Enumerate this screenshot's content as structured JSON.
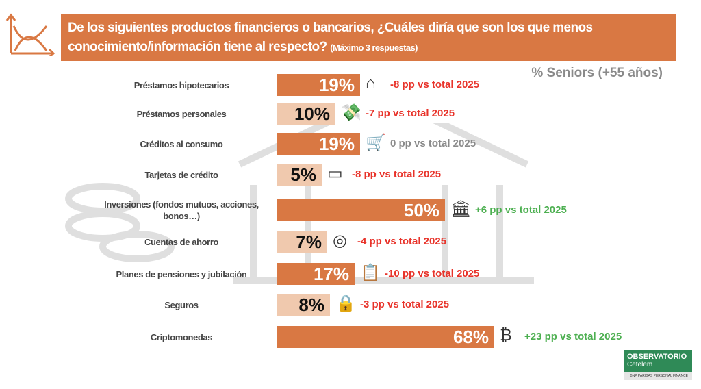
{
  "header": {
    "title": "De los siguientes productos financieros o bancarios, ¿Cuáles diría que son los que menos conocimiento/información tiene al respecto?",
    "note": "(Máximo 3 respuestas)"
  },
  "brand": {
    "name": "OBSERVATORIO",
    "sub": "Cetelem",
    "parent": "BNP PARIBAS PERSONAL FINANCE"
  },
  "chart_data": {
    "type": "bar",
    "orientation": "horizontal",
    "title": "% Seniors (+55 años)",
    "categories": [
      "Préstamos hipotecarios",
      "Préstamos personales",
      "Créditos al consumo",
      "Tarjetas de crédito",
      "Inversiones (fondos mutuos, acciones, bonos…)",
      "Cuentas de ahorro",
      "Planes de pensiones y jubilación",
      "Seguros",
      "Criptomonedas"
    ],
    "values": [
      19,
      10,
      19,
      5,
      50,
      7,
      17,
      8,
      68
    ],
    "value_labels": [
      "19%",
      "10%",
      "19%",
      "5%",
      "50%",
      "7%",
      "17%",
      "8%",
      "68%"
    ],
    "deltas": [
      "-8 pp vs total 2025",
      "-7 pp vs total 2025",
      "0 pp vs total 2025",
      "-8 pp vs total 2025",
      "+6 pp vs total 2025",
      "-4 pp vs total 2025",
      "-10 pp vs total 2025",
      "-3 pp vs total 2025",
      "+23 pp vs total 2025"
    ],
    "delta_colors": [
      "#E8332A",
      "#E8332A",
      "#8a8a8a",
      "#E8332A",
      "#4CAF50",
      "#E8332A",
      "#E8332A",
      "#E8332A",
      "#4CAF50"
    ],
    "icons": [
      "house-percent-icon",
      "money-hand-icon",
      "shopping-cart-icon",
      "credit-card-icon",
      "bank-icon",
      "coins-icon",
      "clipboard-checklist-icon",
      "padlock-icon",
      "bitcoin-icon"
    ],
    "colors": {
      "dark": "#D97843",
      "light": "#F0C9AE"
    }
  }
}
